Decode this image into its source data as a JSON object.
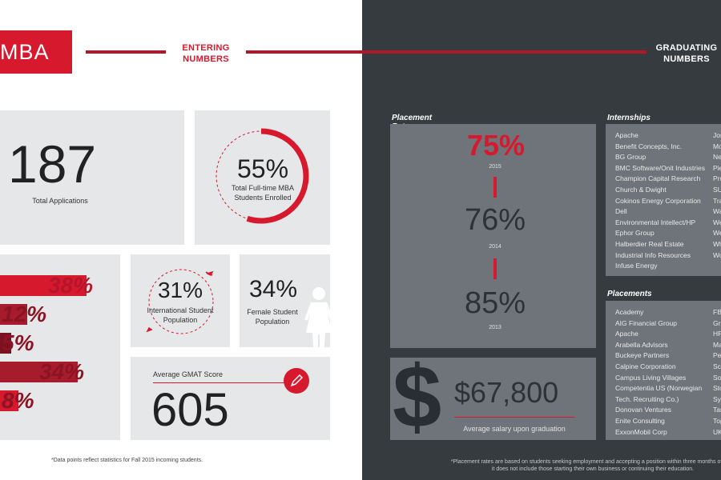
{
  "header": {
    "mba_label": "MBA",
    "entering_label": "ENTERING\nNUMBERS",
    "graduating_label": "GRADUATING\nNUMBERS"
  },
  "entering": {
    "applications": {
      "value": "187",
      "label": "Total Applications"
    },
    "fulltime": {
      "value": "55%",
      "label": "Total Full-time MBA Students Enrolled",
      "fraction": 0.55
    },
    "international": {
      "value": "31%",
      "label": "International Student Population"
    },
    "female": {
      "value": "34%",
      "label": "Female Student Population"
    },
    "gmat": {
      "label": "Average GMAT Score",
      "value": "605"
    },
    "bars": [
      {
        "label": "38%",
        "value": 38,
        "color": "#d7192e"
      },
      {
        "label": "12%",
        "value": 12,
        "color": "#a71c2c"
      },
      {
        "label": "5%",
        "value": 5,
        "color": "#7a1020"
      },
      {
        "label": "34%",
        "value": 34,
        "color": "#a71c2c"
      },
      {
        "label": "8%",
        "value": 8,
        "color": "#d7192e"
      }
    ],
    "footnote": "*Data points reflect statistics for Fall 2015 incoming students."
  },
  "graduating": {
    "placement": {
      "title": "Placement Rate",
      "rates": [
        {
          "value": "75%",
          "year": "2015",
          "highlight": true
        },
        {
          "value": "76%",
          "year": "2014",
          "highlight": false
        },
        {
          "value": "85%",
          "year": "2013",
          "highlight": false
        }
      ]
    },
    "salary": {
      "value": "$67,800",
      "label": "Average salary upon graduation",
      "symbol": "$"
    },
    "internships": {
      "title": "Internships",
      "col1": [
        "Apache",
        "Benefit Concepts, Inc.",
        "BG Group",
        "BMC Software/Onit Industries",
        "Champion Capital Research",
        "Church & Dwight",
        "Cokinos Energy Corporation",
        "Dell",
        "Environmental Intellect/HP",
        "Ephor Group",
        "Halberdier Real Estate",
        "Industrial Info Resources",
        "Infuse Energy"
      ],
      "col2": [
        "Jor",
        "Mo",
        "Ne",
        "Pie",
        "Pro",
        "SU",
        "Tra",
        "Wa",
        "We",
        "We",
        "Wh",
        "Wo"
      ]
    },
    "placements": {
      "title": "Placements",
      "col1": [
        "Academy",
        "AIG Financial Group",
        "Apache",
        "Arabella Advisors",
        "Buckeye Partners",
        "Calpine Corporation",
        "Campus Living Villages",
        "Competentia US (Norwegian",
        "Tech. Recruiting Co.)",
        "Donovan Ventures",
        "Enite Consulting",
        "ExxonMobil Corp"
      ],
      "col2": [
        "FB",
        "Gre",
        "HP",
        "Ma",
        "Pe",
        "Sch",
        "Soc",
        "Sto",
        "Sys",
        "Tar",
        "Top",
        "UK"
      ]
    },
    "footnote": "*Placement rates are based on students seeking employment and accepting a position within three months of grad\nit does not include those starting their own business or continuing their education."
  }
}
